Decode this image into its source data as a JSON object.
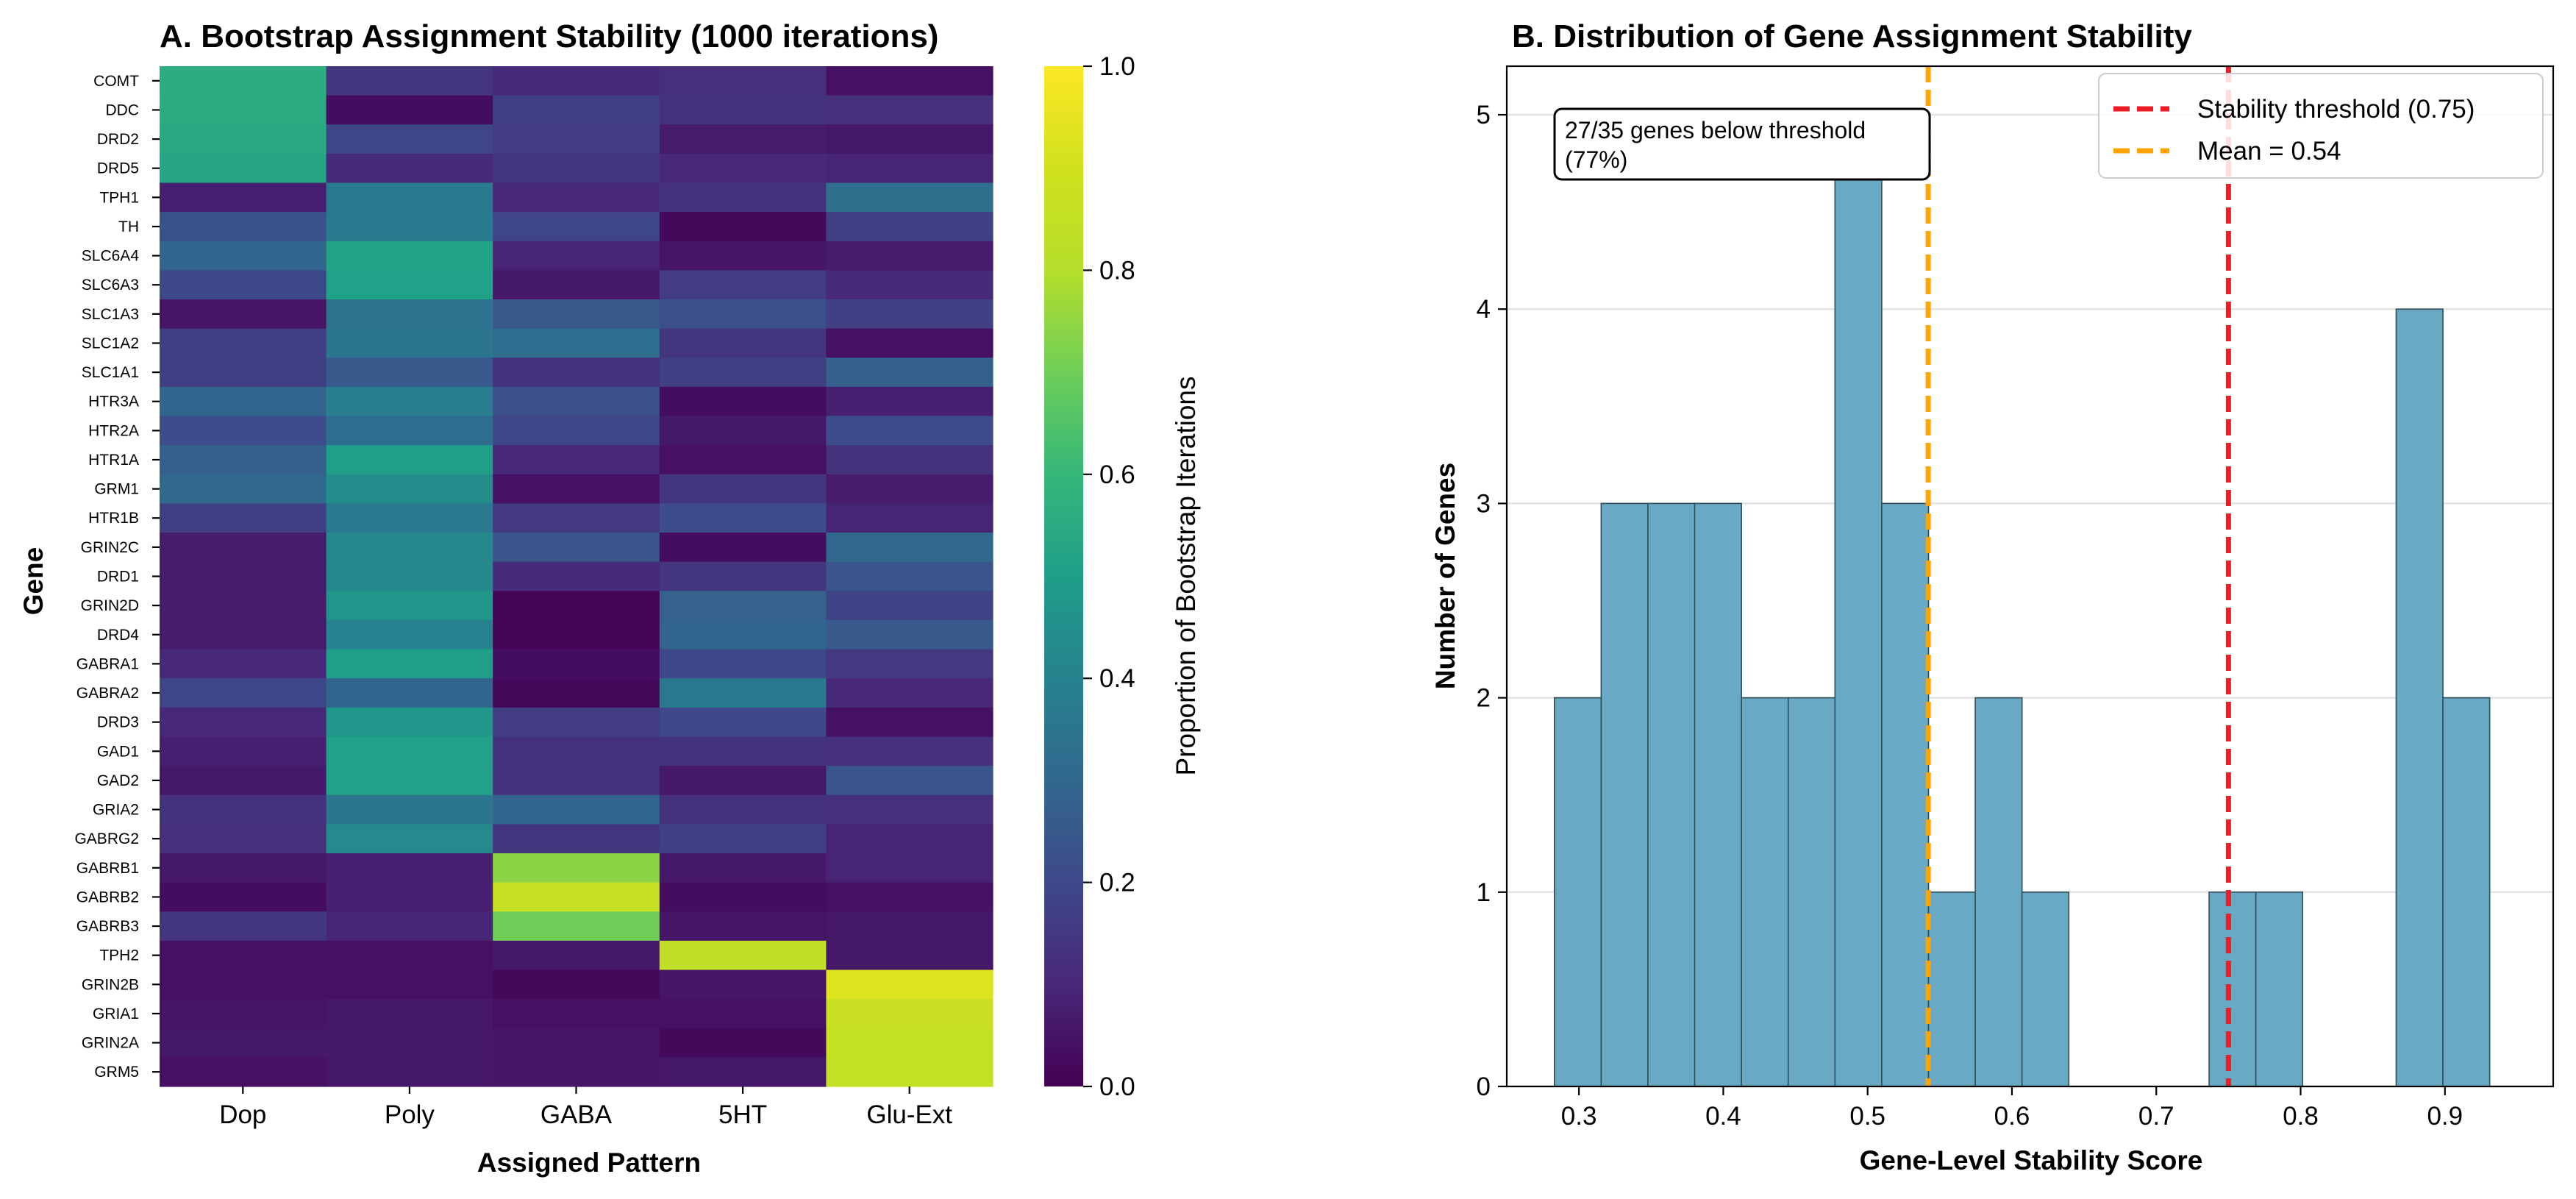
{
  "charts": {
    "heatmap": {
      "title": "A. Bootstrap Assignment Stability (1000 iterations)",
      "xlabel": "Assigned Pattern",
      "ylabel": "Gene",
      "colorbar_label": "Proportion of Bootstrap Iterations",
      "colorbar_ticks": [
        "0.0",
        "0.2",
        "0.4",
        "0.6",
        "0.8",
        "1.0"
      ]
    },
    "histogram": {
      "title": "B. Distribution of Gene Assignment Stability",
      "xlabel": "Gene-Level Stability Score",
      "ylabel": "Number of Genes",
      "x_ticks": [
        "0.3",
        "0.4",
        "0.5",
        "0.6",
        "0.7",
        "0.8",
        "0.9"
      ],
      "y_ticks": [
        "0",
        "1",
        "2",
        "3",
        "4",
        "5"
      ],
      "annotation_line1": "27/35 genes below threshold",
      "annotation_line2": "(77%)",
      "legend_threshold": "Stability threshold (0.75)",
      "legend_mean": "Mean = 0.54"
    }
  },
  "chart_data": [
    {
      "type": "heatmap",
      "colormap": "viridis",
      "vmin": 0.0,
      "vmax": 1.0,
      "columns": [
        "Dop",
        "Poly",
        "GABA",
        "5HT",
        "Glu-Ext"
      ],
      "rows": [
        "COMT",
        "DDC",
        "DRD2",
        "DRD5",
        "TPH1",
        "TH",
        "SLC6A4",
        "SLC6A3",
        "SLC1A3",
        "SLC1A2",
        "SLC1A1",
        "HTR3A",
        "HTR2A",
        "HTR1A",
        "GRM1",
        "HTR1B",
        "GRIN2C",
        "DRD1",
        "GRIN2D",
        "DRD4",
        "GABRA1",
        "GABRA2",
        "DRD3",
        "GAD1",
        "GAD2",
        "GRIA2",
        "GABRG2",
        "GABRB1",
        "GABRB2",
        "GABRB3",
        "TPH2",
        "GRIN2B",
        "GRIA1",
        "GRIN2A",
        "GRM5"
      ],
      "values": [
        [
          0.56,
          0.14,
          0.11,
          0.12,
          0.04
        ],
        [
          0.55,
          0.03,
          0.17,
          0.13,
          0.12
        ],
        [
          0.54,
          0.19,
          0.16,
          0.07,
          0.06
        ],
        [
          0.53,
          0.11,
          0.14,
          0.1,
          0.09
        ],
        [
          0.08,
          0.37,
          0.1,
          0.13,
          0.33
        ],
        [
          0.23,
          0.37,
          0.19,
          0.02,
          0.17
        ],
        [
          0.29,
          0.52,
          0.09,
          0.05,
          0.07
        ],
        [
          0.2,
          0.51,
          0.06,
          0.16,
          0.11
        ],
        [
          0.05,
          0.34,
          0.25,
          0.22,
          0.17
        ],
        [
          0.17,
          0.35,
          0.32,
          0.14,
          0.04
        ],
        [
          0.17,
          0.25,
          0.13,
          0.17,
          0.27
        ],
        [
          0.29,
          0.38,
          0.22,
          0.03,
          0.08
        ],
        [
          0.21,
          0.32,
          0.19,
          0.06,
          0.21
        ],
        [
          0.27,
          0.5,
          0.1,
          0.04,
          0.13
        ],
        [
          0.3,
          0.44,
          0.04,
          0.14,
          0.07
        ],
        [
          0.17,
          0.37,
          0.15,
          0.21,
          0.09
        ],
        [
          0.07,
          0.42,
          0.24,
          0.03,
          0.3
        ],
        [
          0.07,
          0.42,
          0.11,
          0.14,
          0.24
        ],
        [
          0.07,
          0.47,
          0.01,
          0.28,
          0.18
        ],
        [
          0.07,
          0.4,
          0.01,
          0.29,
          0.25
        ],
        [
          0.1,
          0.5,
          0.03,
          0.2,
          0.15
        ],
        [
          0.19,
          0.29,
          0.02,
          0.37,
          0.1
        ],
        [
          0.1,
          0.47,
          0.16,
          0.2,
          0.04
        ],
        [
          0.08,
          0.51,
          0.13,
          0.13,
          0.12
        ],
        [
          0.06,
          0.51,
          0.13,
          0.06,
          0.24
        ],
        [
          0.13,
          0.35,
          0.29,
          0.13,
          0.12
        ],
        [
          0.12,
          0.43,
          0.14,
          0.17,
          0.09
        ],
        [
          0.06,
          0.08,
          0.74,
          0.06,
          0.09
        ],
        [
          0.03,
          0.08,
          0.86,
          0.03,
          0.04
        ],
        [
          0.14,
          0.09,
          0.7,
          0.05,
          0.06
        ],
        [
          0.04,
          0.04,
          0.06,
          0.84,
          0.06
        ],
        [
          0.04,
          0.04,
          0.02,
          0.05,
          0.93
        ],
        [
          0.05,
          0.06,
          0.04,
          0.04,
          0.87
        ],
        [
          0.06,
          0.06,
          0.05,
          0.02,
          0.85
        ],
        [
          0.04,
          0.06,
          0.05,
          0.06,
          0.85
        ]
      ]
    },
    {
      "type": "histogram",
      "bin_edges": [
        0.283,
        0.3154,
        0.3478,
        0.3802,
        0.4126,
        0.445,
        0.4774,
        0.5098,
        0.5422,
        0.5746,
        0.607,
        0.6394,
        0.6718,
        0.7042,
        0.7366,
        0.769,
        0.8014,
        0.8338,
        0.8662,
        0.8986,
        0.931
      ],
      "counts": [
        2,
        3,
        3,
        3,
        2,
        2,
        5,
        3,
        1,
        2,
        1,
        0,
        0,
        0,
        1,
        1,
        0,
        0,
        4,
        2
      ],
      "bar_color": "#6aa9c4",
      "xlim": [
        0.25,
        0.975
      ],
      "ylim": [
        0,
        5.25
      ],
      "threshold_line": {
        "x": 0.75,
        "color": "#ee1c25",
        "style": "dashed"
      },
      "mean_line": {
        "x": 0.542,
        "color": "#ffa500",
        "style": "dashed"
      },
      "grid": "horizontal",
      "legend": "top-right"
    }
  ]
}
